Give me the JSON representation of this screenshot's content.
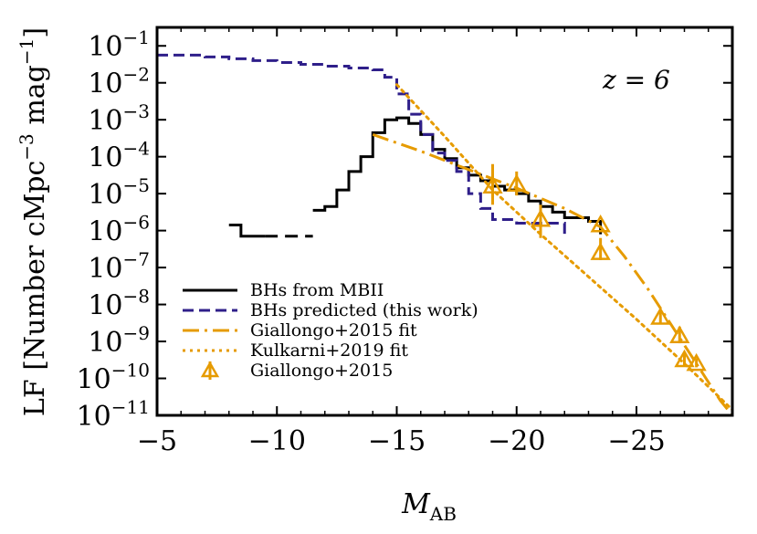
{
  "chart_data": {
    "type": "line",
    "xlabel": "M",
    "xlabel_sub": "AB",
    "ylabel": "LF [Number cMpc",
    "ylabel_exp1": "−3",
    "ylabel_mid": " mag",
    "ylabel_exp2": "−1",
    "ylabel_end": "]",
    "annotation": "z = 6",
    "xlim": [
      -5,
      -29
    ],
    "ylim_log10": [
      -11,
      -0.5
    ],
    "y_scale": "log",
    "x_ticks": [
      -5,
      -10,
      -15,
      -20,
      -25
    ],
    "x_tick_labels": [
      "−5",
      "−10",
      "−15",
      "−20",
      "−25"
    ],
    "y_ticks_exp": [
      -1,
      -2,
      -3,
      -4,
      -5,
      -6,
      -7,
      -8,
      -9,
      -10,
      -11
    ],
    "y_tick_base": "10",
    "y_tick_exp_labels": [
      "−1",
      "−2",
      "−3",
      "−4",
      "−5",
      "−6",
      "−7",
      "−8",
      "−9",
      "−10",
      "−11"
    ],
    "legend_position": "lower-left",
    "colors": {
      "mbii": "#000000",
      "predicted": "#2f1f8a",
      "giallongo": "#e69b00",
      "kulkarni": "#e69b00"
    },
    "series": [
      {
        "name": "BHs from MBII",
        "style": "step-solid-with-gap",
        "x": [
          -8,
          -8.5,
          -9,
          -9.5,
          -10,
          -10.5,
          -11,
          -11.5,
          -12,
          -12.5,
          -13,
          -13.5,
          -14,
          -14.5,
          -15,
          -15.5,
          -16,
          -16.5,
          -17,
          -17.5,
          -18,
          -18.5,
          -19,
          -19.5,
          -20,
          -20.5,
          -21,
          -21.5,
          -22,
          -22.5,
          -23,
          -23.5
        ],
        "y_log10": [
          -5.85,
          -6.15,
          -6.15,
          -6.15,
          -6.15,
          -6.15,
          -6.15,
          -5.45,
          -5.35,
          -4.9,
          -4.4,
          -4.0,
          -3.35,
          -3.0,
          -2.95,
          -3.1,
          -3.4,
          -3.8,
          -4.05,
          -4.3,
          -4.5,
          -4.65,
          -4.8,
          -4.9,
          -5.0,
          -5.2,
          -5.35,
          -5.5,
          -5.65,
          -5.65,
          -5.75,
          -6.1
        ],
        "gap_x": [
          -9.5,
          -11.5
        ]
      },
      {
        "name": "BHs predicted (this work)",
        "style": "step-dashed",
        "x": [
          -5,
          -6,
          -7,
          -8,
          -9,
          -10,
          -11,
          -12,
          -13,
          -14,
          -14.5,
          -15,
          -15.5,
          -16,
          -16.5,
          -17,
          -17.5,
          -18,
          -18.5,
          -19,
          -20,
          -21,
          -22
        ],
        "y_log10": [
          -1.25,
          -1.25,
          -1.3,
          -1.35,
          -1.4,
          -1.45,
          -1.5,
          -1.55,
          -1.6,
          -1.65,
          -1.85,
          -2.3,
          -2.85,
          -3.4,
          -3.9,
          -4.1,
          -4.4,
          -5.0,
          -5.4,
          -5.7,
          -5.8,
          -5.8,
          -6.15
        ]
      },
      {
        "name": "Giallongo+2015 fit",
        "style": "dash-dot",
        "x": [
          -14,
          -16,
          -18,
          -20,
          -22,
          -23.5,
          -24.5,
          -25.5,
          -26.5,
          -27.5,
          -28.5,
          -29
        ],
        "y_log10": [
          -3.4,
          -3.85,
          -4.35,
          -4.85,
          -5.4,
          -5.9,
          -6.7,
          -7.6,
          -8.6,
          -9.6,
          -10.6,
          -11.0
        ]
      },
      {
        "name": "Kulkarni+2019 fit",
        "style": "dotted",
        "x": [
          -15,
          -17,
          -19,
          -21,
          -23,
          -25,
          -27,
          -29
        ],
        "y_log10": [
          -2.05,
          -3.45,
          -4.9,
          -6.1,
          -7.25,
          -8.4,
          -9.6,
          -10.85
        ]
      },
      {
        "name": "Giallongo+2015",
        "style": "triangle-markers-with-errorbars",
        "points": [
          {
            "x": -19,
            "y_log10": -4.8,
            "err_lo": 0.5,
            "err_hi": 0.6
          },
          {
            "x": -20,
            "y_log10": -4.75,
            "err_lo": 0.3,
            "err_hi": 0.35
          },
          {
            "x": -21,
            "y_log10": -5.7,
            "err_lo": 0.5,
            "err_hi": 0.4
          },
          {
            "x": -23.5,
            "y_log10": -6.6,
            "err_lo": 0.2,
            "err_hi": 0.4
          },
          {
            "x": -23.5,
            "y_log10": -5.85,
            "err_lo": 0.0,
            "err_hi": 0.0
          },
          {
            "x": -26,
            "y_log10": -8.35,
            "err_lo": 0.15,
            "err_hi": 0.2
          },
          {
            "x": -26.8,
            "y_log10": -8.85,
            "err_lo": 0.2,
            "err_hi": 0.25
          },
          {
            "x": -27,
            "y_log10": -9.5,
            "err_lo": 0.15,
            "err_hi": 0.2
          },
          {
            "x": -27.5,
            "y_log10": -9.6,
            "err_lo": 0.1,
            "err_hi": 0.15
          }
        ]
      }
    ]
  }
}
